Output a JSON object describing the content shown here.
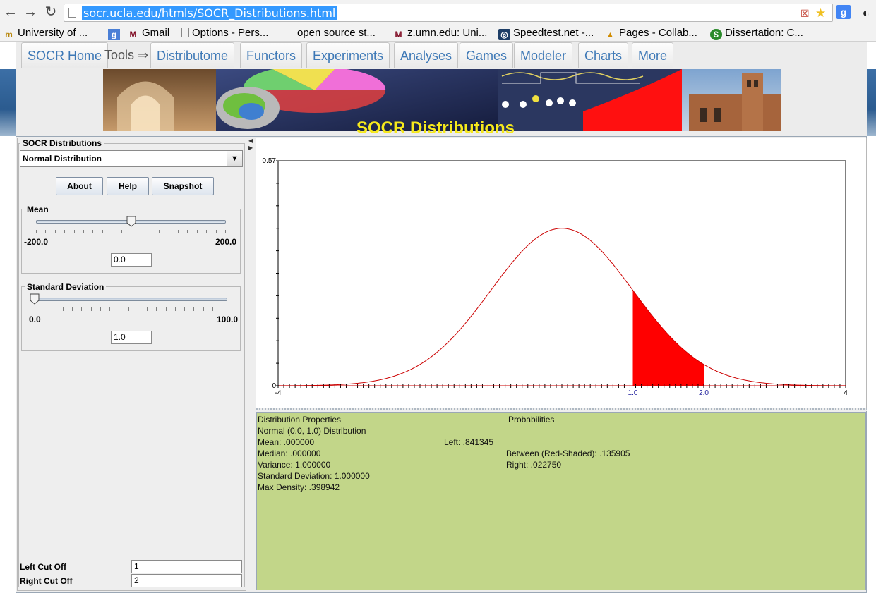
{
  "browser": {
    "url": "socr.ucla.edu/htmls/SOCR_Distributions.html",
    "bookmarks": [
      {
        "label": "University of ...",
        "icon": "umn-m-icon"
      },
      {
        "label": "",
        "icon": "google-g-icon"
      },
      {
        "label": "Gmail",
        "icon": "umn-m-icon"
      },
      {
        "label": "Options - Pers...",
        "icon": "page-icon"
      },
      {
        "label": "open source st...",
        "icon": "page-icon"
      },
      {
        "label": "z.umn.edu: Uni...",
        "icon": "umn-m-icon"
      },
      {
        "label": "Speedtest.net -...",
        "icon": "speedtest-icon"
      },
      {
        "label": "Pages - Collab...",
        "icon": "pages-icon"
      },
      {
        "label": "Dissertation: C...",
        "icon": "dissertation-icon"
      }
    ]
  },
  "nav": {
    "tabs": [
      "SOCR Home",
      "Tools ⇒",
      "Distributome",
      "Functors",
      "Experiments",
      "Analyses",
      "Games",
      "Modeler",
      "Charts",
      "More"
    ]
  },
  "banner": {
    "title": "SOCR Distributions"
  },
  "left_panel": {
    "title": "SOCR Distributions",
    "distribution": "Normal Distribution",
    "buttons": {
      "about": "About",
      "help": "Help",
      "snapshot": "Snapshot"
    },
    "mean": {
      "label": "Mean",
      "min": "-200.0",
      "max": "200.0",
      "value": "0.0",
      "slider_fraction": 0.5
    },
    "sd": {
      "label": "Standard Deviation",
      "min": "0.0",
      "max": "100.0",
      "value": "1.0",
      "slider_fraction": 0.0
    },
    "left_cutoff_label": "Left Cut Off",
    "left_cutoff_value": "1",
    "right_cutoff_label": "Right Cut Off",
    "right_cutoff_value": "2"
  },
  "chart_data": {
    "type": "area",
    "title": "",
    "xlabel": "",
    "ylabel": "",
    "xlim": [
      -4,
      4
    ],
    "ylim": [
      0,
      0.57
    ],
    "y_tick_labels": [
      "0.57",
      "0"
    ],
    "x_tick_labels": [
      "-4",
      "1.0",
      "2.0",
      "4"
    ],
    "series": [
      {
        "distribution": "normal",
        "mean": 0.0,
        "sd": 1.0,
        "color": "#cc0000"
      }
    ],
    "shaded_region": {
      "from": 1.0,
      "to": 2.0,
      "color": "#ff0000"
    }
  },
  "properties": {
    "heading": "Distribution Properties",
    "name": "Normal (0.0, 1.0) Distribution",
    "mean": "Mean: .000000",
    "median": "Median: .000000",
    "variance": "Variance: 1.000000",
    "sd": "Standard Deviation: 1.000000",
    "max_density": "Max Density: .398942",
    "prob_heading": "Probabilities",
    "left": "Left: .841345",
    "between": "Between (Red-Shaded): .135905",
    "right": "Right: .022750"
  }
}
